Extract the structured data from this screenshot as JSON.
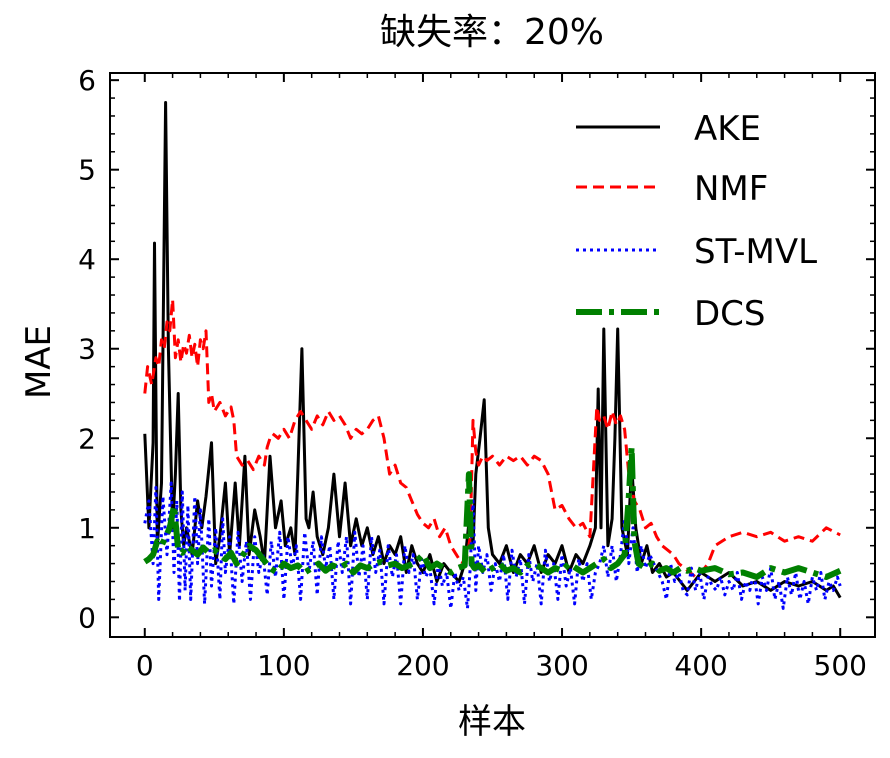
{
  "chart_data": {
    "type": "line",
    "title": "缺失率：20%",
    "xlabel": "样本",
    "ylabel": "MAE",
    "xlim": [
      -25,
      525
    ],
    "ylim": [
      -0.22,
      6.08
    ],
    "xticks": [
      0,
      100,
      200,
      300,
      400,
      500
    ],
    "yticks": [
      0,
      1,
      2,
      3,
      4,
      5,
      6
    ],
    "grid": false,
    "legend_position": "top-right",
    "series": [
      {
        "name": "AKE",
        "color": "#000000",
        "dash": "solid",
        "x": [
          0,
          3,
          6,
          7,
          9,
          12,
          15,
          17,
          20,
          22,
          24,
          26,
          28,
          30,
          34,
          38,
          41,
          44,
          48,
          51,
          54,
          58,
          61,
          65,
          68,
          72,
          75,
          79,
          83,
          86,
          90,
          94,
          98,
          101,
          105,
          108,
          110,
          113,
          116,
          118,
          121,
          124,
          128,
          132,
          136,
          140,
          144,
          148,
          152,
          156,
          160,
          164,
          168,
          172,
          176,
          180,
          184,
          188,
          192,
          196,
          200,
          205,
          210,
          215,
          220,
          226,
          230,
          234,
          236,
          238,
          241,
          244,
          247,
          250,
          255,
          260,
          265,
          270,
          275,
          280,
          285,
          290,
          295,
          300,
          305,
          310,
          315,
          320,
          324,
          326,
          328,
          330,
          333,
          336,
          338,
          340,
          343,
          347,
          350,
          353,
          357,
          361,
          365,
          370,
          375,
          380,
          385,
          390,
          395,
          400,
          410,
          420,
          430,
          440,
          450,
          460,
          470,
          480,
          490,
          495,
          500
        ],
        "values": [
          2.05,
          1.0,
          1.95,
          4.18,
          0.8,
          1.5,
          5.75,
          3.0,
          1.0,
          1.6,
          2.5,
          1.2,
          0.8,
          1.0,
          0.7,
          1.3,
          1.0,
          1.35,
          1.95,
          0.6,
          0.9,
          1.5,
          0.7,
          1.5,
          0.8,
          1.8,
          0.7,
          1.2,
          0.9,
          0.6,
          1.8,
          1.0,
          1.3,
          0.8,
          1.0,
          0.7,
          1.6,
          3.0,
          1.1,
          1.0,
          1.4,
          0.9,
          0.7,
          1.0,
          1.6,
          0.9,
          1.5,
          0.8,
          1.1,
          0.8,
          1.0,
          0.7,
          0.9,
          0.6,
          0.8,
          0.7,
          0.9,
          0.5,
          0.8,
          0.6,
          0.5,
          0.7,
          0.4,
          0.6,
          0.5,
          0.4,
          0.6,
          1.2,
          0.8,
          1.6,
          2.0,
          2.43,
          1.0,
          0.7,
          0.6,
          0.8,
          0.5,
          0.7,
          0.6,
          0.8,
          0.5,
          0.7,
          0.6,
          0.8,
          0.5,
          0.7,
          0.6,
          0.8,
          1.0,
          2.55,
          1.0,
          3.22,
          0.8,
          1.1,
          2.0,
          3.22,
          1.0,
          0.7,
          1.7,
          1.0,
          0.6,
          0.8,
          0.5,
          0.6,
          0.45,
          0.5,
          0.4,
          0.3,
          0.4,
          0.5,
          0.4,
          0.5,
          0.35,
          0.4,
          0.3,
          0.4,
          0.35,
          0.4,
          0.3,
          0.35,
          0.22
        ]
      },
      {
        "name": "NMF",
        "color": "#ff0000",
        "dash": "dashed",
        "x": [
          0,
          2,
          5,
          8,
          10,
          12,
          14,
          16,
          18,
          20,
          22,
          24,
          26,
          28,
          30,
          32,
          34,
          36,
          38,
          40,
          42,
          44,
          46,
          48,
          50,
          54,
          58,
          62,
          64,
          66,
          70,
          74,
          78,
          82,
          86,
          88,
          90,
          92,
          96,
          100,
          104,
          108,
          112,
          116,
          120,
          124,
          128,
          132,
          136,
          140,
          144,
          148,
          152,
          156,
          160,
          164,
          168,
          172,
          176,
          180,
          184,
          188,
          192,
          196,
          200,
          204,
          208,
          212,
          216,
          220,
          224,
          228,
          232,
          234,
          236,
          238,
          240,
          243,
          246,
          250,
          255,
          260,
          265,
          270,
          275,
          280,
          285,
          290,
          295,
          300,
          305,
          310,
          315,
          320,
          325,
          327,
          330,
          333,
          336,
          339,
          342,
          345,
          348,
          352,
          356,
          360,
          364,
          368,
          372,
          376,
          380,
          384,
          388,
          392,
          396,
          400,
          405,
          410,
          420,
          430,
          440,
          450,
          460,
          470,
          480,
          490,
          500
        ],
        "values": [
          2.5,
          2.8,
          2.6,
          2.9,
          2.8,
          3.1,
          3.0,
          3.3,
          3.2,
          3.55,
          2.9,
          3.1,
          2.85,
          3.05,
          2.95,
          3.15,
          2.9,
          3.05,
          2.8,
          3.1,
          3.0,
          3.2,
          2.4,
          2.5,
          2.3,
          2.4,
          2.25,
          2.35,
          2.2,
          1.8,
          1.7,
          1.75,
          1.65,
          1.8,
          1.7,
          1.9,
          2.0,
          2.05,
          2.0,
          2.1,
          2.0,
          2.2,
          2.3,
          2.2,
          2.1,
          2.25,
          2.15,
          2.3,
          2.2,
          2.25,
          2.15,
          2.0,
          2.1,
          2.05,
          2.1,
          2.2,
          2.25,
          2.0,
          1.6,
          1.7,
          1.5,
          1.45,
          1.3,
          1.15,
          1.05,
          1.0,
          1.1,
          0.9,
          1.0,
          0.8,
          0.7,
          0.6,
          0.7,
          0.9,
          2.2,
          1.85,
          1.7,
          1.8,
          1.75,
          1.8,
          1.7,
          1.8,
          1.75,
          1.8,
          1.7,
          1.8,
          1.75,
          1.6,
          1.2,
          1.25,
          1.1,
          1.0,
          1.05,
          0.9,
          2.35,
          2.2,
          2.25,
          2.1,
          2.3,
          2.15,
          2.25,
          2.1,
          1.6,
          1.3,
          1.2,
          1.0,
          1.05,
          0.9,
          0.8,
          0.75,
          0.7,
          0.6,
          0.55,
          0.5,
          0.45,
          0.5,
          0.6,
          0.8,
          0.9,
          0.95,
          0.9,
          0.95,
          0.85,
          0.9,
          0.85,
          1.0,
          0.92
        ]
      },
      {
        "name": "ST-MVL",
        "color": "#0000ff",
        "dash": "dotted",
        "x": [
          0,
          3,
          6,
          8,
          10,
          13,
          16,
          19,
          21,
          23,
          25,
          27,
          29,
          31,
          33,
          36,
          38,
          40,
          43,
          46,
          48,
          51,
          54,
          56,
          58,
          61,
          64,
          67,
          70,
          73,
          76,
          79,
          82,
          85,
          88,
          91,
          94,
          97,
          100,
          103,
          106,
          109,
          112,
          115,
          118,
          121,
          124,
          127,
          130,
          133,
          136,
          139,
          142,
          145,
          148,
          151,
          154,
          157,
          160,
          163,
          166,
          169,
          172,
          175,
          178,
          181,
          184,
          187,
          190,
          193,
          196,
          199,
          202,
          205,
          208,
          211,
          214,
          217,
          220,
          223,
          226,
          229,
          232,
          234,
          236,
          238,
          240,
          243,
          246,
          249,
          252,
          255,
          258,
          261,
          264,
          267,
          270,
          273,
          276,
          279,
          282,
          285,
          288,
          291,
          294,
          297,
          300,
          303,
          306,
          309,
          312,
          315,
          318,
          321,
          324,
          327,
          330,
          333,
          336,
          339,
          342,
          345,
          348,
          351,
          354,
          357,
          360,
          363,
          366,
          369,
          372,
          375,
          378,
          381,
          384,
          387,
          390,
          393,
          396,
          399,
          402,
          405,
          408,
          411,
          414,
          417,
          420,
          423,
          426,
          429,
          432,
          435,
          438,
          441,
          444,
          447,
          450,
          453,
          456,
          459,
          462,
          465,
          468,
          471,
          474,
          477,
          480,
          483,
          486,
          489,
          492,
          495,
          498,
          500
        ],
        "values": [
          1.05,
          1.3,
          0.6,
          1.45,
          0.2,
          1.35,
          0.7,
          1.5,
          0.5,
          1.3,
          0.18,
          1.4,
          0.3,
          1.25,
          0.2,
          1.35,
          0.6,
          1.2,
          0.15,
          1.1,
          0.35,
          1.0,
          0.2,
          1.1,
          0.5,
          0.9,
          0.15,
          0.95,
          0.4,
          0.85,
          0.2,
          0.9,
          0.5,
          0.7,
          0.25,
          0.85,
          0.45,
          0.95,
          0.2,
          0.9,
          0.55,
          0.8,
          0.2,
          0.95,
          0.5,
          0.85,
          0.25,
          0.9,
          0.55,
          0.8,
          0.2,
          0.85,
          0.5,
          0.9,
          0.15,
          0.95,
          0.45,
          0.8,
          0.2,
          0.9,
          0.5,
          0.75,
          0.15,
          0.8,
          0.45,
          0.7,
          0.15,
          0.8,
          0.5,
          0.7,
          0.2,
          0.65,
          0.45,
          0.55,
          0.15,
          0.6,
          0.35,
          0.5,
          0.1,
          0.5,
          0.3,
          0.45,
          0.1,
          0.55,
          1.3,
          0.3,
          0.8,
          0.5,
          0.7,
          0.3,
          0.6,
          0.4,
          0.7,
          0.2,
          0.75,
          0.45,
          0.65,
          0.15,
          0.7,
          0.4,
          0.6,
          0.15,
          0.75,
          0.4,
          0.6,
          0.2,
          0.7,
          0.35,
          0.55,
          0.15,
          0.65,
          0.4,
          0.6,
          0.2,
          0.5,
          0.6,
          0.8,
          0.45,
          0.8,
          0.4,
          0.7,
          1.1,
          0.6,
          1.0,
          0.5,
          0.8,
          0.55,
          0.7,
          0.6,
          0.5,
          0.4,
          0.2,
          0.6,
          0.4,
          0.5,
          0.3,
          0.25,
          0.55,
          0.3,
          0.5,
          0.2,
          0.45,
          0.35,
          0.3,
          0.45,
          0.25,
          0.4,
          0.3,
          0.5,
          0.2,
          0.4,
          0.3,
          0.5,
          0.15,
          0.45,
          0.3,
          0.55,
          0.2,
          0.4,
          0.1,
          0.45,
          0.25,
          0.5,
          0.2,
          0.4,
          0.15,
          0.45,
          0.3,
          0.5,
          0.2,
          0.4,
          0.3,
          0.45,
          0.35
        ]
      },
      {
        "name": "DCS",
        "color": "#008000",
        "dash": "dashdot",
        "x": [
          0,
          3,
          6,
          9,
          12,
          15,
          18,
          21,
          24,
          27,
          30,
          34,
          38,
          42,
          46,
          50,
          54,
          58,
          62,
          66,
          70,
          75,
          80,
          85,
          90,
          95,
          100,
          105,
          110,
          115,
          120,
          125,
          130,
          135,
          140,
          145,
          150,
          155,
          160,
          165,
          170,
          175,
          180,
          185,
          190,
          195,
          200,
          205,
          210,
          215,
          220,
          225,
          230,
          233,
          235,
          237,
          240,
          245,
          250,
          255,
          260,
          265,
          270,
          275,
          280,
          285,
          290,
          295,
          300,
          305,
          310,
          315,
          320,
          325,
          330,
          335,
          340,
          345,
          348,
          350,
          352,
          355,
          360,
          365,
          370,
          375,
          380,
          385,
          390,
          395,
          400,
          410,
          420,
          430,
          440,
          450,
          460,
          470,
          480,
          490,
          500
        ],
        "values": [
          0.62,
          0.65,
          0.7,
          0.85,
          0.8,
          0.9,
          1.0,
          1.25,
          0.75,
          0.72,
          0.8,
          0.75,
          0.7,
          0.78,
          0.72,
          0.75,
          0.7,
          0.65,
          0.72,
          0.6,
          0.68,
          0.8,
          0.75,
          0.65,
          0.55,
          0.5,
          0.6,
          0.55,
          0.58,
          0.5,
          0.55,
          0.6,
          0.52,
          0.58,
          0.55,
          0.6,
          0.5,
          0.58,
          0.55,
          0.6,
          0.62,
          0.58,
          0.6,
          0.55,
          0.58,
          0.62,
          0.7,
          0.55,
          0.6,
          0.55,
          0.5,
          0.55,
          0.58,
          1.6,
          0.6,
          0.55,
          0.58,
          0.5,
          0.55,
          0.6,
          0.52,
          0.55,
          0.5,
          0.58,
          0.6,
          0.55,
          0.5,
          0.55,
          0.52,
          0.6,
          0.55,
          0.5,
          0.55,
          0.6,
          0.65,
          0.55,
          0.6,
          0.7,
          1.35,
          1.9,
          0.85,
          0.6,
          0.55,
          0.6,
          0.52,
          0.55,
          0.5,
          0.55,
          0.52,
          0.55,
          0.52,
          0.55,
          0.48,
          0.5,
          0.45,
          0.55,
          0.5,
          0.55,
          0.5,
          0.45,
          0.52
        ]
      }
    ]
  }
}
